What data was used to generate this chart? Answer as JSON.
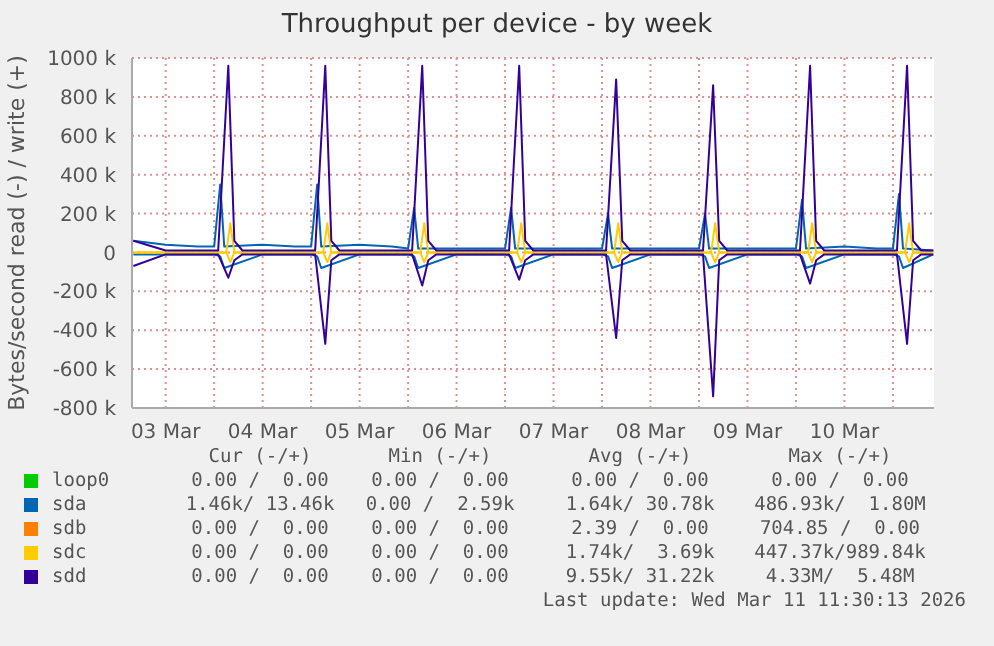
{
  "chart_data": {
    "type": "line",
    "title": "Throughput per device - by week",
    "ylabel": "Bytes/second read (-) / write (+)",
    "xlim": [
      "2026-03-03T03:40",
      "2026-03-11T10:10"
    ],
    "xticks": [
      {
        "value": "2026-03-03T12:00",
        "label": "03 Mar"
      },
      {
        "value": "2026-03-04T00:00",
        "label": null
      },
      {
        "value": "2026-03-04T12:00",
        "label": "04 Mar"
      },
      {
        "value": "2026-03-05T00:00",
        "label": null
      },
      {
        "value": "2026-03-05T12:00",
        "label": "05 Mar"
      },
      {
        "value": "2026-03-06T00:00",
        "label": null
      },
      {
        "value": "2026-03-06T12:00",
        "label": "06 Mar"
      },
      {
        "value": "2026-03-07T00:00",
        "label": null
      },
      {
        "value": "2026-03-07T12:00",
        "label": "07 Mar"
      },
      {
        "value": "2026-03-08T00:00",
        "label": null
      },
      {
        "value": "2026-03-08T12:00",
        "label": "08 Mar"
      },
      {
        "value": "2026-03-09T00:00",
        "label": null
      },
      {
        "value": "2026-03-09T12:00",
        "label": "09 Mar"
      },
      {
        "value": "2026-03-10T00:00",
        "label": null
      },
      {
        "value": "2026-03-10T12:00",
        "label": "10 Mar"
      },
      {
        "value": "2026-03-11T00:00",
        "label": null
      }
    ],
    "ylim": [
      -800000,
      1000000
    ],
    "yticks": [
      {
        "value": -800000,
        "label": "-800 k"
      },
      {
        "value": -600000,
        "label": "-600 k"
      },
      {
        "value": -400000,
        "label": "-400 k"
      },
      {
        "value": -200000,
        "label": "-200 k"
      },
      0,
      {
        "value": 200000,
        "label": "200 k"
      },
      {
        "value": 400000,
        "label": "400 k"
      },
      {
        "value": 600000,
        "label": "600 k"
      },
      {
        "value": 800000,
        "label": "800 k"
      },
      {
        "value": 1000000,
        "label": "1000 k"
      }
    ],
    "grid": true,
    "legend": "bottom",
    "marker": "none",
    "line_style": "solid",
    "series": [
      {
        "name": "loop0",
        "color": "#00cc00"
      },
      {
        "name": "sda",
        "color": "#0066b3",
        "x": [
          "2026-03-03T04:00",
          "2026-03-03T12:00",
          "2026-03-03T20:00",
          "2026-03-04T00:00",
          "2026-03-04T01:30",
          "2026-03-04T02:30",
          "2026-03-04T12:00",
          "2026-03-04T20:00",
          "2026-03-05T00:00",
          "2026-03-05T01:30",
          "2026-03-05T02:30",
          "2026-03-05T12:00",
          "2026-03-05T20:00",
          "2026-03-06T00:00",
          "2026-03-06T01:30",
          "2026-03-06T02:30",
          "2026-03-06T12:00",
          "2026-03-06T20:00",
          "2026-03-07T00:00",
          "2026-03-07T01:30",
          "2026-03-07T02:30",
          "2026-03-07T12:00",
          "2026-03-07T20:00",
          "2026-03-08T00:00",
          "2026-03-08T01:30",
          "2026-03-08T02:30",
          "2026-03-08T12:00",
          "2026-03-08T20:00",
          "2026-03-09T00:00",
          "2026-03-09T01:30",
          "2026-03-09T02:30",
          "2026-03-09T12:00",
          "2026-03-09T20:00",
          "2026-03-10T00:00",
          "2026-03-10T01:30",
          "2026-03-10T02:30",
          "2026-03-10T12:00",
          "2026-03-10T20:00",
          "2026-03-11T00:00",
          "2026-03-11T01:30",
          "2026-03-11T02:30",
          "2026-03-11T10:00"
        ],
        "values": [
          60000,
          40000,
          30000,
          30000,
          350000,
          30000,
          40000,
          30000,
          30000,
          350000,
          30000,
          40000,
          30000,
          20000,
          230000,
          20000,
          20000,
          20000,
          20000,
          230000,
          20000,
          20000,
          20000,
          20000,
          200000,
          20000,
          20000,
          20000,
          20000,
          200000,
          20000,
          20000,
          20000,
          20000,
          270000,
          20000,
          30000,
          20000,
          20000,
          300000,
          20000,
          10000
        ]
      },
      {
        "color": "#0066b3",
        "x": [
          "2026-03-03T04:00",
          "2026-03-03T12:00",
          "2026-03-03T20:00",
          "2026-03-04T00:00",
          "2026-03-04T01:30",
          "2026-03-04T02:30",
          "2026-03-04T12:00",
          "2026-03-04T20:00",
          "2026-03-05T00:00",
          "2026-03-05T01:30",
          "2026-03-05T02:30",
          "2026-03-05T12:00",
          "2026-03-05T20:00",
          "2026-03-06T00:00",
          "2026-03-06T01:30",
          "2026-03-06T02:30",
          "2026-03-06T12:00",
          "2026-03-06T20:00",
          "2026-03-07T00:00",
          "2026-03-07T01:30",
          "2026-03-07T02:30",
          "2026-03-07T12:00",
          "2026-03-07T20:00",
          "2026-03-08T00:00",
          "2026-03-08T01:30",
          "2026-03-08T02:30",
          "2026-03-08T12:00",
          "2026-03-08T20:00",
          "2026-03-09T00:00",
          "2026-03-09T01:30",
          "2026-03-09T02:30",
          "2026-03-09T12:00",
          "2026-03-09T20:00",
          "2026-03-10T00:00",
          "2026-03-10T01:30",
          "2026-03-10T02:30",
          "2026-03-10T12:00",
          "2026-03-10T20:00",
          "2026-03-11T00:00",
          "2026-03-11T01:30",
          "2026-03-11T02:30",
          "2026-03-11T10:00"
        ],
        "values": [
          -10000,
          -10000,
          -10000,
          -10000,
          -20000,
          -80000,
          -10000,
          -10000,
          -10000,
          -20000,
          -80000,
          -10000,
          -10000,
          -10000,
          -20000,
          -80000,
          -10000,
          -10000,
          -10000,
          -20000,
          -80000,
          -10000,
          -10000,
          -10000,
          -20000,
          -80000,
          -10000,
          -10000,
          -10000,
          -20000,
          -80000,
          -10000,
          -10000,
          -10000,
          -20000,
          -80000,
          -10000,
          -10000,
          -10000,
          -20000,
          -80000,
          -10000
        ]
      },
      {
        "name": "sdb",
        "color": "#ff8000"
      },
      {
        "name": "sdc",
        "color": "#ffcc00",
        "x": [
          "2026-03-03T04:00",
          "2026-03-04T03:00",
          "2026-03-04T04:00",
          "2026-03-04T05:00",
          "2026-03-05T03:00",
          "2026-03-05T04:00",
          "2026-03-05T05:00",
          "2026-03-06T03:00",
          "2026-03-06T04:00",
          "2026-03-06T05:00",
          "2026-03-07T03:00",
          "2026-03-07T04:00",
          "2026-03-07T05:00",
          "2026-03-08T03:00",
          "2026-03-08T04:00",
          "2026-03-08T05:00",
          "2026-03-09T03:00",
          "2026-03-09T04:00",
          "2026-03-09T05:00",
          "2026-03-10T03:00",
          "2026-03-10T04:00",
          "2026-03-10T05:00",
          "2026-03-11T03:00",
          "2026-03-11T04:00",
          "2026-03-11T05:00",
          "2026-03-11T10:00"
        ],
        "values": [
          0,
          0,
          150000,
          0,
          0,
          150000,
          0,
          0,
          150000,
          0,
          0,
          150000,
          0,
          0,
          150000,
          0,
          0,
          150000,
          0,
          0,
          150000,
          0,
          0,
          150000,
          0,
          0
        ]
      },
      {
        "color": "#ffcc00",
        "x": [
          "2026-03-03T04:00",
          "2026-03-04T03:00",
          "2026-03-04T04:00",
          "2026-03-04T05:00",
          "2026-03-05T03:00",
          "2026-03-05T04:00",
          "2026-03-05T05:00",
          "2026-03-06T03:00",
          "2026-03-06T04:00",
          "2026-03-06T05:00",
          "2026-03-07T03:00",
          "2026-03-07T04:00",
          "2026-03-07T05:00",
          "2026-03-08T03:00",
          "2026-03-08T04:00",
          "2026-03-08T05:00",
          "2026-03-09T03:00",
          "2026-03-09T04:00",
          "2026-03-09T05:00",
          "2026-03-10T03:00",
          "2026-03-10T04:00",
          "2026-03-10T05:00",
          "2026-03-11T03:00",
          "2026-03-11T04:00",
          "2026-03-11T05:00",
          "2026-03-11T10:00"
        ],
        "values": [
          0,
          0,
          -50000,
          0,
          0,
          -50000,
          0,
          0,
          -50000,
          0,
          0,
          -50000,
          0,
          0,
          -50000,
          0,
          0,
          -50000,
          0,
          0,
          -50000,
          0,
          0,
          -50000,
          0,
          0
        ]
      },
      {
        "name": "sdd",
        "color": "#330099",
        "x": [
          "2026-03-03T04:00",
          "2026-03-03T12:00",
          "2026-03-03T20:00",
          "2026-03-04T01:00",
          "2026-03-04T03:30",
          "2026-03-04T05:00",
          "2026-03-04T07:00",
          "2026-03-04T16:00",
          "2026-03-05T01:00",
          "2026-03-05T03:30",
          "2026-03-05T05:00",
          "2026-03-05T07:00",
          "2026-03-05T16:00",
          "2026-03-06T01:00",
          "2026-03-06T03:30",
          "2026-03-06T05:00",
          "2026-03-06T07:00",
          "2026-03-06T16:00",
          "2026-03-07T01:00",
          "2026-03-07T03:30",
          "2026-03-07T05:00",
          "2026-03-07T07:00",
          "2026-03-07T16:00",
          "2026-03-08T01:00",
          "2026-03-08T03:30",
          "2026-03-08T05:00",
          "2026-03-08T07:00",
          "2026-03-08T16:00",
          "2026-03-09T01:00",
          "2026-03-09T03:30",
          "2026-03-09T05:00",
          "2026-03-09T07:00",
          "2026-03-09T16:00",
          "2026-03-10T01:00",
          "2026-03-10T03:30",
          "2026-03-10T05:00",
          "2026-03-10T07:00",
          "2026-03-10T16:00",
          "2026-03-11T01:00",
          "2026-03-11T03:30",
          "2026-03-11T05:00",
          "2026-03-11T07:00",
          "2026-03-11T10:00"
        ],
        "values": [
          60000,
          10000,
          10000,
          10000,
          960000,
          60000,
          10000,
          10000,
          10000,
          960000,
          60000,
          10000,
          10000,
          10000,
          960000,
          60000,
          10000,
          10000,
          10000,
          960000,
          60000,
          10000,
          10000,
          10000,
          890000,
          60000,
          10000,
          10000,
          10000,
          860000,
          60000,
          10000,
          10000,
          10000,
          960000,
          60000,
          10000,
          10000,
          10000,
          960000,
          60000,
          10000,
          10000
        ]
      },
      {
        "color": "#330099",
        "x": [
          "2026-03-03T04:00",
          "2026-03-03T12:00",
          "2026-03-03T20:00",
          "2026-03-04T01:00",
          "2026-03-04T03:30",
          "2026-03-04T05:00",
          "2026-03-04T07:00",
          "2026-03-04T16:00",
          "2026-03-05T01:00",
          "2026-03-05T03:30",
          "2026-03-05T05:00",
          "2026-03-05T07:00",
          "2026-03-05T16:00",
          "2026-03-06T01:00",
          "2026-03-06T03:30",
          "2026-03-06T05:00",
          "2026-03-06T07:00",
          "2026-03-06T16:00",
          "2026-03-07T01:00",
          "2026-03-07T03:30",
          "2026-03-07T05:00",
          "2026-03-07T07:00",
          "2026-03-07T16:00",
          "2026-03-08T01:00",
          "2026-03-08T03:30",
          "2026-03-08T05:00",
          "2026-03-08T07:00",
          "2026-03-08T16:00",
          "2026-03-09T01:00",
          "2026-03-09T03:30",
          "2026-03-09T05:00",
          "2026-03-09T07:00",
          "2026-03-09T16:00",
          "2026-03-10T01:00",
          "2026-03-10T03:30",
          "2026-03-10T05:00",
          "2026-03-10T07:00",
          "2026-03-10T16:00",
          "2026-03-11T01:00",
          "2026-03-11T03:30",
          "2026-03-11T05:00",
          "2026-03-11T07:00",
          "2026-03-11T10:00"
        ],
        "values": [
          -70000,
          -10000,
          -10000,
          -10000,
          -130000,
          -40000,
          -10000,
          -10000,
          -10000,
          -470000,
          -40000,
          -10000,
          -10000,
          -10000,
          -170000,
          -40000,
          -10000,
          -10000,
          -10000,
          -140000,
          -40000,
          -10000,
          -10000,
          -10000,
          -440000,
          -40000,
          -10000,
          -10000,
          -10000,
          -740000,
          -40000,
          -10000,
          -10000,
          -10000,
          -160000,
          -40000,
          -10000,
          -10000,
          -10000,
          -470000,
          -40000,
          -10000,
          -10000
        ]
      }
    ],
    "annotations": [
      "Cur (-/+)",
      "Min (-/+)",
      "Avg (-/+)",
      "Max (-/+)",
      "0.00 /  0.00",
      "0.00 /  0.00",
      "0.00 /  0.00",
      "0.00 /  0.00",
      "1.46k/ 13.46k",
      "0.00 /  2.59k",
      "1.64k/ 30.78k",
      "486.93k/  1.80M",
      "0.00 /  0.00",
      "0.00 /  0.00",
      "2.39 /  0.00",
      "704.85 /  0.00",
      "0.00 /  0.00",
      "0.00 /  0.00",
      "1.74k/  3.69k",
      "447.37k/989.84k",
      "0.00 /  0.00",
      "0.00 /  0.00",
      "9.55k/ 31.22k",
      "4.33M/  5.48M",
      "Last update: Wed Mar 11 11:30:13 2026"
    ]
  }
}
